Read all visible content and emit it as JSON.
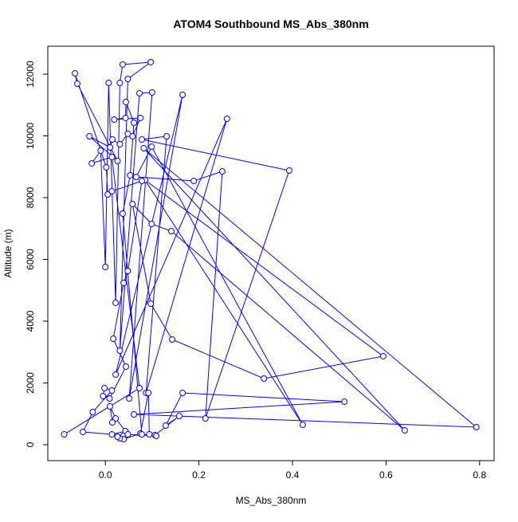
{
  "chart_data": {
    "type": "line",
    "title": "ATOM4 Southbound MS_Abs_380nm",
    "xlabel": "MS_Abs_380nm",
    "ylabel": "Altitude (m)",
    "color": "#0000ff",
    "x": [
      -0.088,
      0.073,
      0.014,
      -0.029,
      -0.01,
      0.0,
      0.007,
      0.022,
      0.031,
      0.037,
      0.097,
      0.048,
      0.031,
      0.073,
      0.1,
      0.051,
      0.165,
      0.022,
      0.26,
      0.087,
      0.131,
      0.078,
      0.393,
      0.214,
      0.25,
      0.189,
      0.066,
      0.099,
      0.422,
      0.085,
      0.594,
      0.339,
      0.143,
      0.097,
      0.058,
      0.099,
      0.141,
      0.64,
      0.082,
      0.793,
      0.061,
      0.511,
      0.165,
      0.129,
      0.158,
      0.106,
      0.094,
      0.092,
      0.075,
      0.039,
      0.031,
      0.026,
      0.043,
      0.014,
      -0.048,
      -0.027,
      0.014,
      -0.002,
      -0.005,
      0.009,
      0.044,
      0.017,
      0.039,
      0.048,
      0.078,
      0.014,
      0.005,
      0.002,
      -0.065,
      -0.06,
      0.026,
      -0.034,
      0.01,
      0.015,
      0.031,
      0.048,
      0.058,
      0.075,
      0.019,
      0.043,
      0.044,
      0.061,
      0.053,
      0.037,
      0.078,
      0.109,
      0.048,
      0.022,
      0.01,
      0.015
    ],
    "values": [
      335,
      1832,
      9316,
      9110,
      9523,
      5755,
      11716,
      4594,
      11716,
      12310,
      12387,
      11845,
      3045,
      11380,
      11406,
      1497,
      11329,
      2271,
      10555,
      1677,
      9987,
      9884,
      8877,
      852,
      8851,
      8542,
      8671,
      9651,
      645,
      8568,
      2865,
      2142,
      3406,
      4568,
      7794,
      7148,
      6916,
      465,
      9600,
      568,
      981,
      1394,
      1677,
      619,
      929,
      310,
      335,
      1677,
      361,
      181,
      206,
      258,
      439,
      335,
      413,
      1058,
      1755,
      1832,
      1574,
      1497,
      2529,
      3432,
      5239,
      5626,
      8542,
      8206,
      8103,
      8981,
      12026,
      11690,
      9187,
      9987,
      9626,
      9884,
      9729,
      10065,
      9987,
      10581,
      10529,
      10581,
      11097,
      10426,
      8723,
      7484,
      335,
      284,
      335,
      852,
      1239,
      723
    ],
    "xlim": [
      -0.123,
      0.831
    ],
    "ylim": [
      -516,
      12903
    ],
    "xticks": [
      {
        "value": 0,
        "label": "0.0"
      },
      0.2,
      0.4,
      0.6,
      0.8
    ],
    "yticks": [
      0,
      2000,
      4000,
      6000,
      8000,
      10000,
      12000
    ]
  }
}
